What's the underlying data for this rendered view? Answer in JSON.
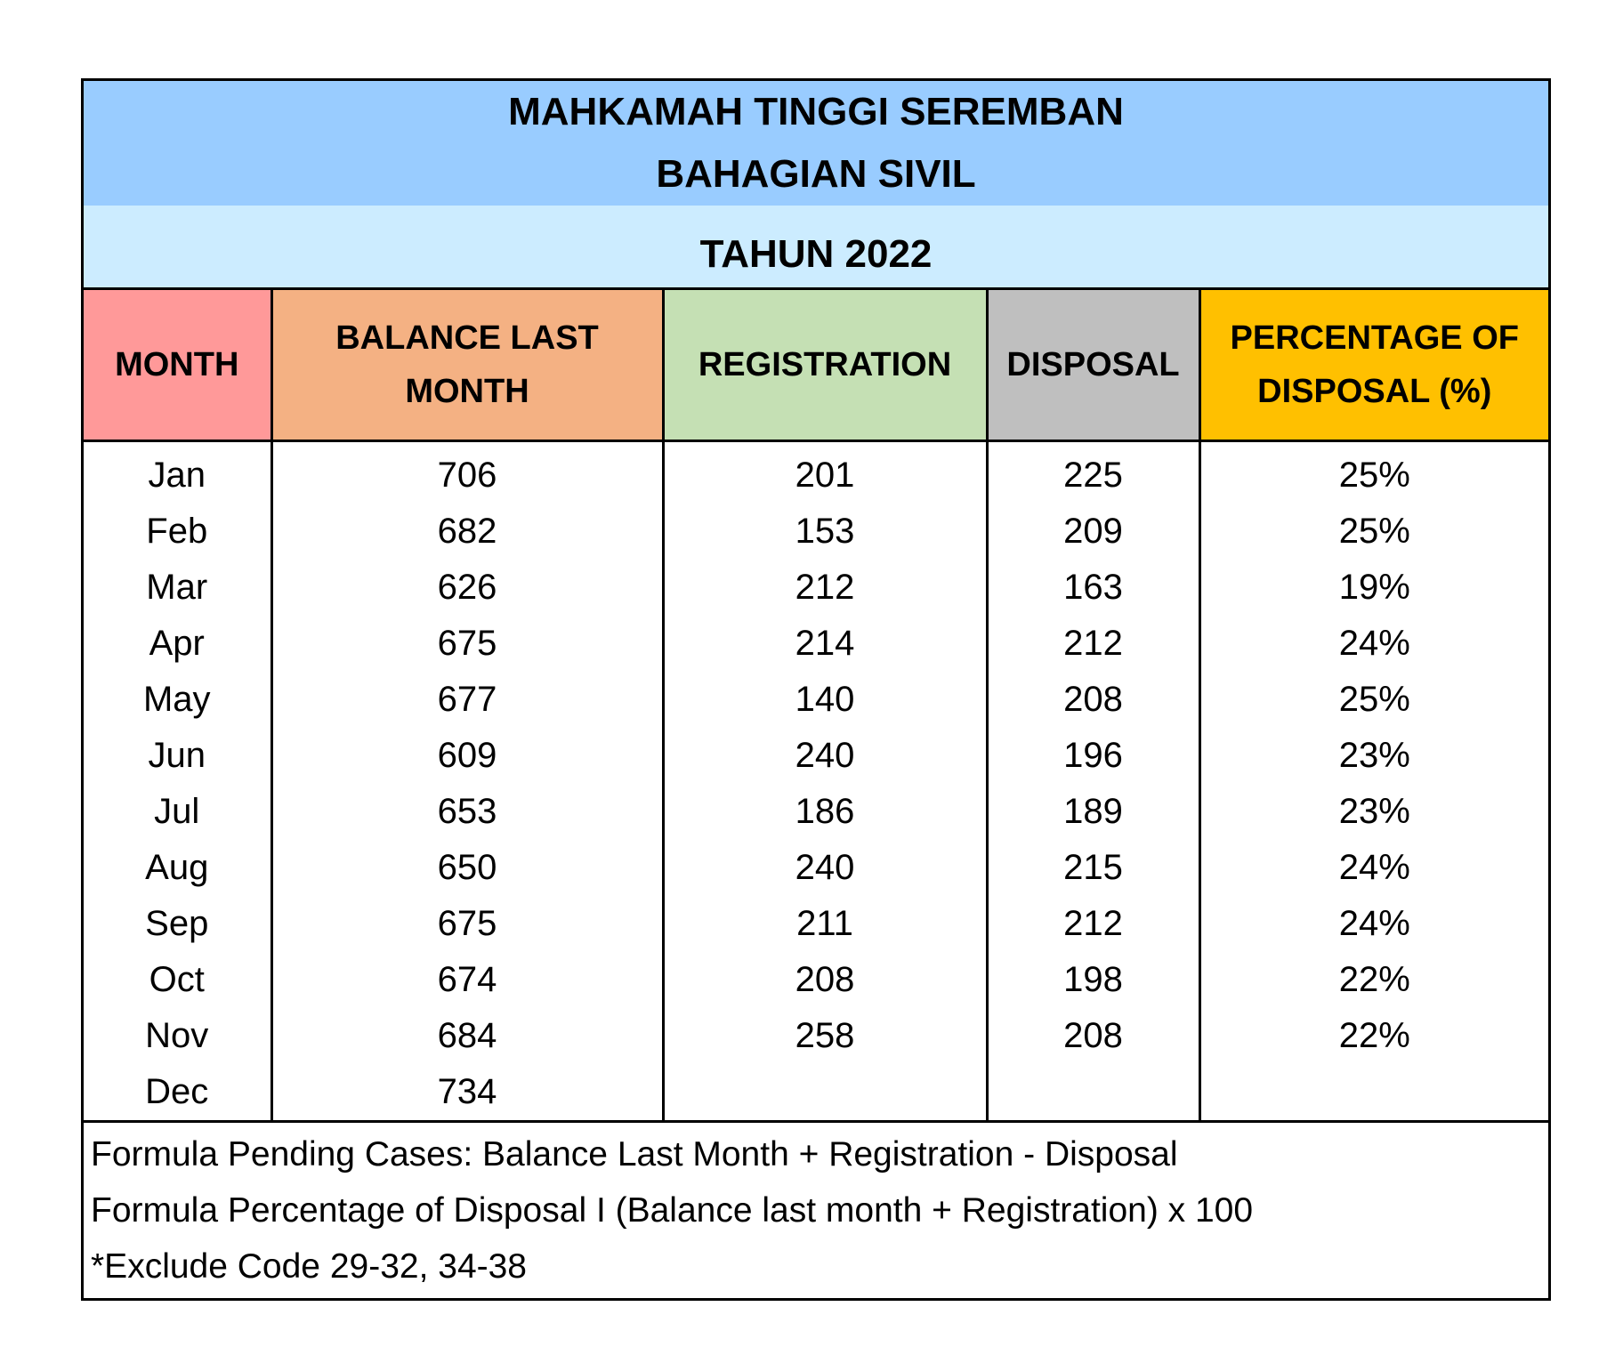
{
  "title": {
    "line1": "MAHKAMAH TINGGI SEREMBAN",
    "line2": "BAHAGIAN SIVIL",
    "year": "TAHUN 2022"
  },
  "colors": {
    "title_bg": "#99CCFF",
    "year_bg": "#CCECFF",
    "month": "#FF9999",
    "balance": "#F4B183",
    "registration": "#C5E0B4",
    "disposal": "#BFBFBF",
    "percentage": "#FFC000"
  },
  "headers": [
    "MONTH",
    "BALANCE LAST MONTH",
    "REGISTRATION",
    "DISPOSAL",
    "PERCENTAGE OF DISPOSAL (%)"
  ],
  "rows": [
    [
      "Jan",
      "706",
      "201",
      "225",
      "25%"
    ],
    [
      "Feb",
      "682",
      "153",
      "209",
      "25%"
    ],
    [
      "Mar",
      "626",
      "212",
      "163",
      "19%"
    ],
    [
      "Apr",
      "675",
      "214",
      "212",
      "24%"
    ],
    [
      "May",
      "677",
      "140",
      "208",
      "25%"
    ],
    [
      "Jun",
      "609",
      "240",
      "196",
      "23%"
    ],
    [
      "Jul",
      "653",
      "186",
      "189",
      "23%"
    ],
    [
      "Aug",
      "650",
      "240",
      "215",
      "24%"
    ],
    [
      "Sep",
      "675",
      "211",
      "212",
      "24%"
    ],
    [
      "Oct",
      "674",
      "208",
      "198",
      "22%"
    ],
    [
      "Nov",
      "684",
      "258",
      "208",
      "22%"
    ],
    [
      "Dec",
      "734",
      "",
      "",
      ""
    ]
  ],
  "footer": [
    "Formula Pending Cases: Balance Last Month + Registration - Disposal",
    "Formula Percentage of Disposal I (Balance last month + Registration) x 100",
    "*Exclude Code 29-32, 34-38"
  ]
}
